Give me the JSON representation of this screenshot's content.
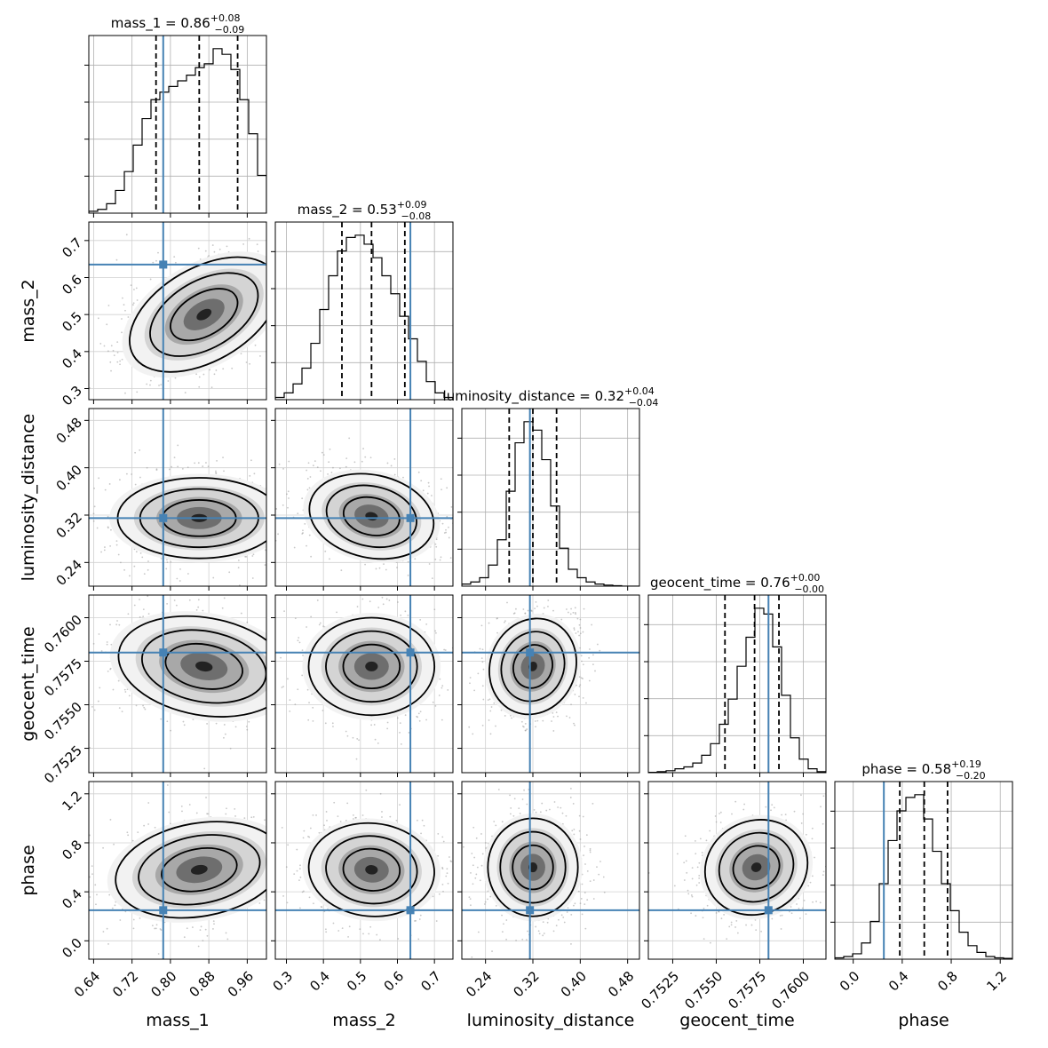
{
  "chart_data": {
    "type": "corner",
    "grid": true,
    "truth_color": "#4682b4",
    "params": [
      {
        "name": "mass_1",
        "xlabel": "mass_1",
        "ylabel": "",
        "title_main": "mass_1 = 0.86",
        "title_plus": "+0.08",
        "title_minus": "−0.09",
        "range": [
          0.63,
          1.0
        ],
        "ticks": [
          0.64,
          0.72,
          0.8,
          0.88,
          0.96
        ],
        "tick_labels": [
          "0.64",
          "0.72",
          "0.80",
          "0.88",
          "0.96"
        ],
        "truth": 0.785,
        "quantiles": [
          0.77,
          0.86,
          0.94
        ],
        "hist_values": [
          1,
          2,
          5,
          12,
          22,
          36,
          50,
          60,
          64,
          67,
          70,
          73,
          77,
          79,
          87,
          84,
          76,
          60,
          42,
          20
        ]
      },
      {
        "name": "mass_2",
        "xlabel": "mass_2",
        "ylabel": "mass_2",
        "title_main": "mass_2 = 0.53",
        "title_plus": "+0.09",
        "title_minus": "−0.08",
        "range": [
          0.27,
          0.75
        ],
        "ticks": [
          0.3,
          0.4,
          0.5,
          0.6,
          0.7
        ],
        "tick_labels": [
          "0.3",
          "0.4",
          "0.5",
          "0.6",
          "0.7"
        ],
        "truth": 0.635,
        "quantiles": [
          0.45,
          0.53,
          0.62
        ],
        "hist_values": [
          1,
          3,
          7,
          14,
          25,
          40,
          55,
          66,
          72,
          73,
          69,
          63,
          55,
          47,
          37,
          27,
          17,
          8,
          3,
          1
        ]
      },
      {
        "name": "luminosity_distance",
        "xlabel": "luminosity_distance",
        "ylabel": "luminosity_distance",
        "title_main": "luminosity_distance = 0.32",
        "title_plus": "+0.04",
        "title_minus": "−0.04",
        "range": [
          0.2,
          0.5
        ],
        "ticks": [
          0.24,
          0.32,
          0.4,
          0.48
        ],
        "tick_labels": [
          "0.24",
          "0.32",
          "0.40",
          "0.48"
        ],
        "truth": 0.315,
        "quantiles": [
          0.28,
          0.32,
          0.36
        ],
        "hist_values": [
          1,
          2,
          4,
          10,
          22,
          45,
          68,
          78,
          74,
          60,
          38,
          18,
          8,
          4,
          2,
          1,
          0.5,
          0.2,
          0,
          0
        ]
      },
      {
        "name": "geocent_time",
        "xlabel": "geocent_time",
        "ylabel": "geocent_time",
        "title_main": "geocent_time = 0.76",
        "title_plus": "+0.00",
        "title_minus": "−0.00",
        "range": [
          0.7511,
          0.7613
        ],
        "ticks": [
          0.7525,
          0.755,
          0.7575,
          0.76
        ],
        "tick_labels": [
          "0.7525",
          "0.7550",
          "0.7575",
          "0.7600"
        ],
        "truth": 0.758,
        "quantiles": [
          0.7555,
          0.7572,
          0.7586
        ],
        "hist_values": [
          0.2,
          0.5,
          1,
          2,
          3,
          5,
          9,
          15,
          25,
          38,
          55,
          70,
          85,
          82,
          65,
          40,
          18,
          7,
          2,
          0.5
        ]
      },
      {
        "name": "phase",
        "xlabel": "phase",
        "ylabel": "phase",
        "title_main": "phase = 0.58",
        "title_plus": "+0.19",
        "title_minus": "−0.20",
        "range": [
          -0.15,
          1.3
        ],
        "ticks": [
          0.0,
          0.4,
          0.8,
          1.2
        ],
        "tick_labels": [
          "0.0",
          "0.4",
          "0.8",
          "1.2"
        ],
        "truth": 0.25,
        "quantiles": [
          0.38,
          0.58,
          0.77
        ],
        "hist_values": [
          0.5,
          1,
          2,
          6,
          14,
          28,
          44,
          55,
          60,
          61,
          52,
          40,
          28,
          18,
          10,
          5,
          2.5,
          1,
          0.5,
          0.3
        ]
      }
    ],
    "contours": [
      {
        "x": "mass_1",
        "y": "mass_2",
        "center": [
          0.87,
          0.5
        ],
        "spread": [
          0.085,
          0.063
        ],
        "rot": -30
      },
      {
        "x": "mass_1",
        "y": "luminosity_distance",
        "center": [
          0.86,
          0.315
        ],
        "spread": [
          0.085,
          0.034
        ],
        "rot": 0
      },
      {
        "x": "mass_2",
        "y": "luminosity_distance",
        "center": [
          0.53,
          0.318
        ],
        "spread": [
          0.085,
          0.035
        ],
        "rot": 12
      },
      {
        "x": "luminosity_distance",
        "y": "geocent_time",
        "center": [
          0.32,
          0.7572
        ],
        "spread": [
          0.036,
          0.0014
        ],
        "rot": 22
      },
      {
        "x": "mass_1",
        "y": "geocent_time",
        "center": [
          0.87,
          0.7572
        ],
        "spread": [
          0.09,
          0.0014
        ],
        "rot": 10
      },
      {
        "x": "mass_2",
        "y": "geocent_time",
        "center": [
          0.53,
          0.7572
        ],
        "spread": [
          0.085,
          0.0014
        ],
        "rot": 0
      },
      {
        "x": "mass_1",
        "y": "phase",
        "center": [
          0.86,
          0.58
        ],
        "spread": [
          0.088,
          0.19
        ],
        "rot": -10
      },
      {
        "x": "mass_2",
        "y": "phase",
        "center": [
          0.53,
          0.58
        ],
        "spread": [
          0.085,
          0.19
        ],
        "rot": 5
      },
      {
        "x": "luminosity_distance",
        "y": "phase",
        "center": [
          0.32,
          0.6
        ],
        "spread": [
          0.038,
          0.2
        ],
        "rot": 0
      },
      {
        "x": "geocent_time",
        "y": "phase",
        "center": [
          0.7573,
          0.6
        ],
        "spread": [
          0.0015,
          0.19
        ],
        "rot": -25
      }
    ]
  }
}
